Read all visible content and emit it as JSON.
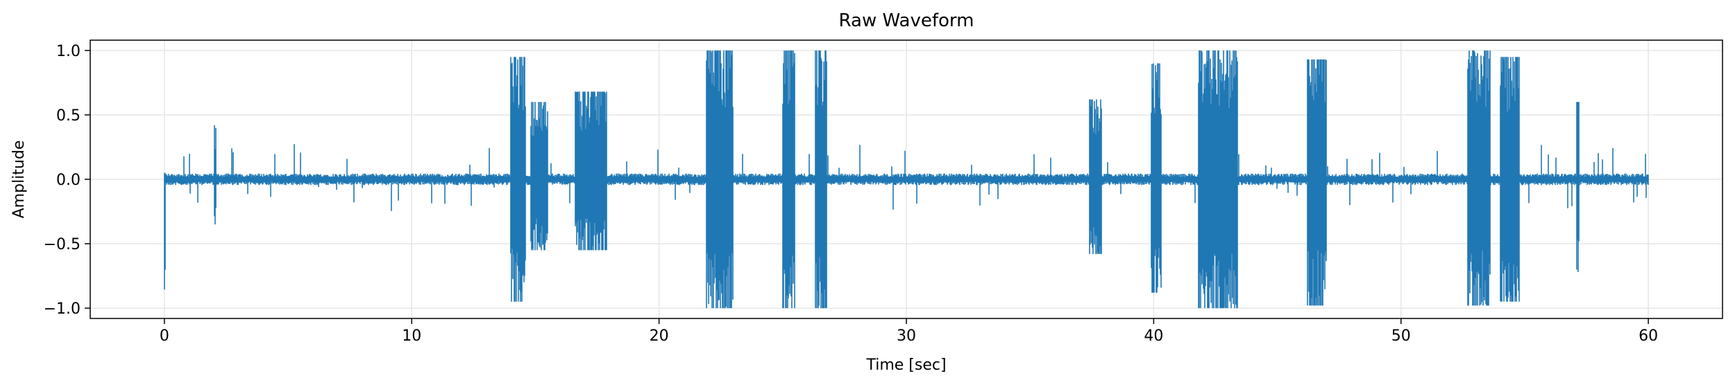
{
  "chart_data": {
    "type": "line",
    "title": "Raw Waveform",
    "xlabel": "Time [sec]",
    "ylabel": "Amplitude",
    "xlim": [
      -3,
      63
    ],
    "ylim": [
      -1.08,
      1.08
    ],
    "xticks": [
      0,
      10,
      20,
      30,
      40,
      50,
      60
    ],
    "xtick_labels": [
      "0",
      "10",
      "20",
      "30",
      "40",
      "50",
      "60"
    ],
    "yticks": [
      -1.0,
      -0.5,
      0.0,
      0.5,
      1.0
    ],
    "ytick_labels": [
      "−1.0",
      "−0.5",
      "0.0",
      "0.5",
      "1.0"
    ],
    "grid": true,
    "line_color": "#1f77b4",
    "grid_color": "#e6e6e6",
    "duration": 60.0,
    "series": [
      {
        "baseline_noise": 0.03,
        "envelope_segments": [
          {
            "start": 0.0,
            "end": 0.05,
            "max": 0.05,
            "min": -1.0
          },
          {
            "start": 2.0,
            "end": 2.1,
            "max": 0.42,
            "min": -0.35
          },
          {
            "start": 14.0,
            "end": 14.6,
            "max": 0.95,
            "min": -0.95
          },
          {
            "start": 14.8,
            "end": 15.5,
            "max": 0.6,
            "min": -0.55
          },
          {
            "start": 16.6,
            "end": 17.9,
            "max": 0.68,
            "min": -0.55
          },
          {
            "start": 21.9,
            "end": 23.0,
            "max": 1.0,
            "min": -1.0
          },
          {
            "start": 25.0,
            "end": 25.5,
            "max": 1.0,
            "min": -1.0
          },
          {
            "start": 26.3,
            "end": 26.8,
            "max": 1.0,
            "min": -1.0
          },
          {
            "start": 37.4,
            "end": 37.9,
            "max": 0.62,
            "min": -0.58
          },
          {
            "start": 39.9,
            "end": 40.3,
            "max": 0.9,
            "min": -0.88
          },
          {
            "start": 41.8,
            "end": 43.4,
            "max": 1.0,
            "min": -1.0
          },
          {
            "start": 46.2,
            "end": 47.0,
            "max": 0.93,
            "min": -0.98
          },
          {
            "start": 52.7,
            "end": 53.6,
            "max": 1.0,
            "min": -0.98
          },
          {
            "start": 54.0,
            "end": 54.8,
            "max": 0.95,
            "min": -0.95
          },
          {
            "start": 57.1,
            "end": 57.2,
            "max": 0.6,
            "min": -0.72
          }
        ]
      }
    ]
  }
}
